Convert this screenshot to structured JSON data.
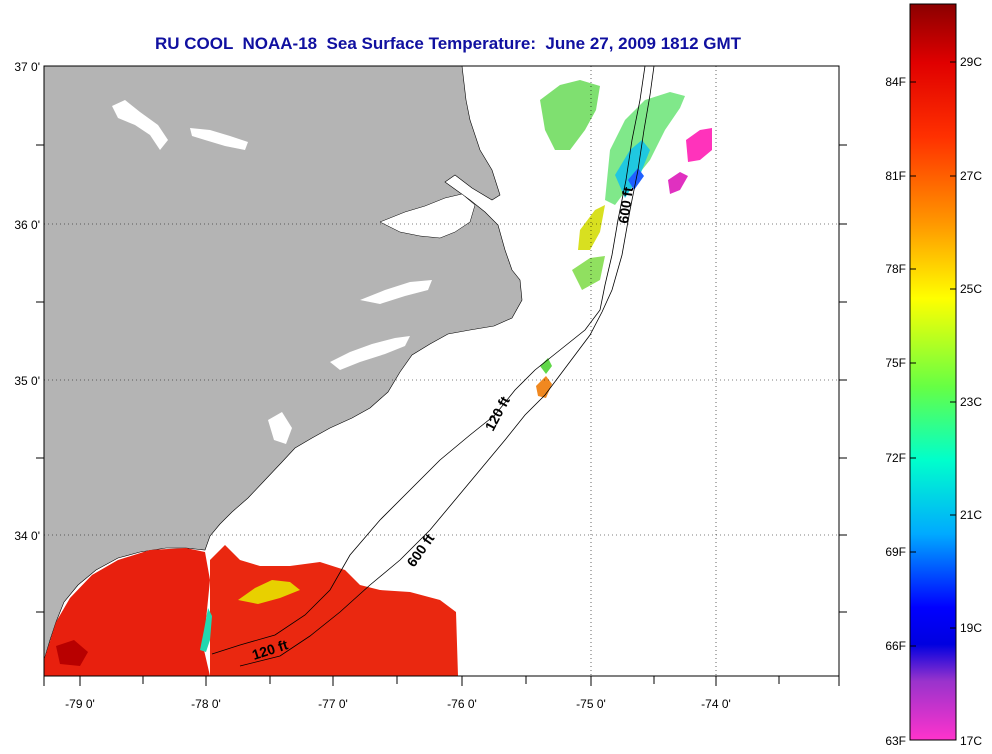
{
  "title": "RU COOL  NOAA-18  Sea Surface Temperature:  June 27, 2009 1812 GMT",
  "map": {
    "lat_ticks": [
      "37 0'",
      "36 0'",
      "35 0'",
      "34 0'"
    ],
    "lon_ticks": [
      "-79 0'",
      "-78 0'",
      "-77 0'",
      "-76 0'",
      "-75 0'",
      "-74 0'"
    ],
    "contours": {
      "shelf_label_1": "120 ft",
      "shelf_label_2": "120 ft",
      "deep_label_1": "600 ft",
      "deep_label_2": "600 ft"
    },
    "colors": {
      "land": "#b4b4b4",
      "water_clouds": "#ffffff",
      "grid": "#000000"
    }
  },
  "colorbar": {
    "fahrenheit_labels": [
      "84F",
      "81F",
      "78F",
      "75F",
      "72F",
      "69F",
      "66F",
      "63F"
    ],
    "celsius_labels": [
      "29C",
      "27C",
      "25C",
      "23C",
      "21C",
      "19C",
      "17C"
    ],
    "range_c": [
      17,
      30
    ],
    "stops": [
      "#8b0000",
      "#ff1a00",
      "#ff8c00",
      "#ffff00",
      "#7fff00",
      "#00ff80",
      "#00ffff",
      "#0080ff",
      "#0000ff",
      "#9933cc",
      "#ff33cc"
    ]
  }
}
